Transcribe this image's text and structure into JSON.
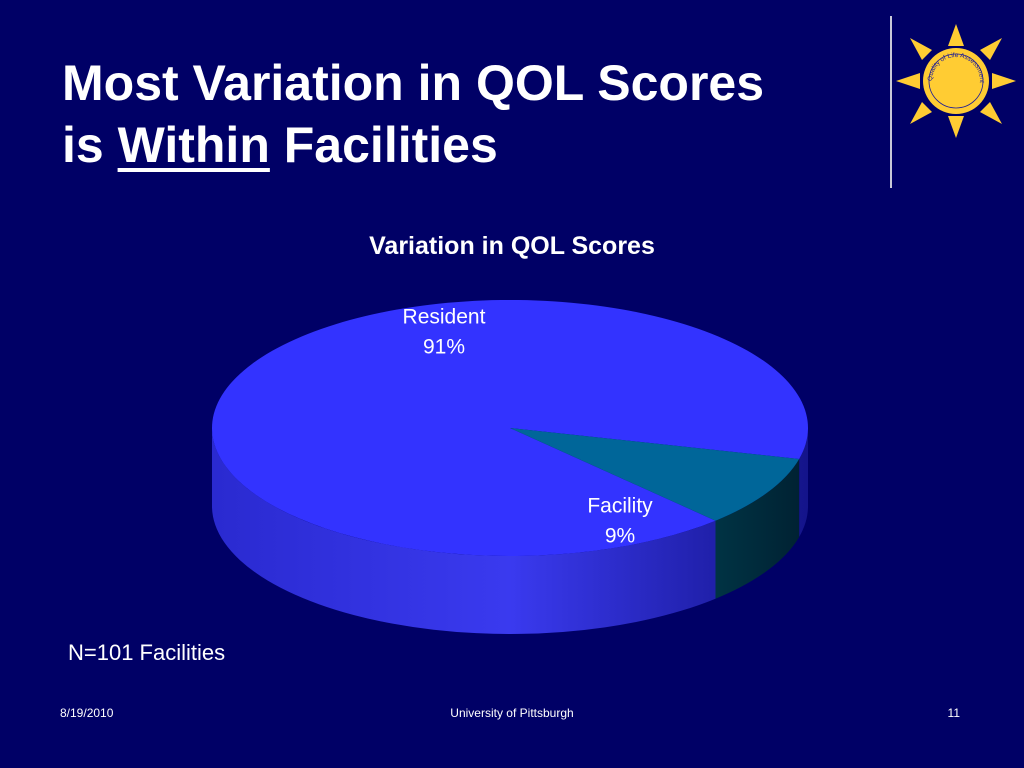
{
  "slide": {
    "title_line1": "Most Variation in QOL Scores",
    "title_line2_prefix": "is ",
    "title_line2_emph": "Within",
    "title_line2_suffix": " Facilities",
    "note": "N=101 Facilities",
    "logo_text": "Quality of Life Assessment"
  },
  "footer": {
    "date": "8/19/2010",
    "organization": "University of Pittsburgh",
    "page": "11"
  },
  "colors": {
    "background": "#000066",
    "resident_slice": "#3333ff",
    "facility_slice": "#006699",
    "sun": "#ffcc33"
  },
  "chart_data": {
    "type": "pie",
    "title": "Variation in QOL Scores",
    "categories": [
      "Resident",
      "Facility"
    ],
    "values": [
      91,
      9
    ],
    "labels": [
      "91%",
      "9%"
    ],
    "style": "3d"
  }
}
